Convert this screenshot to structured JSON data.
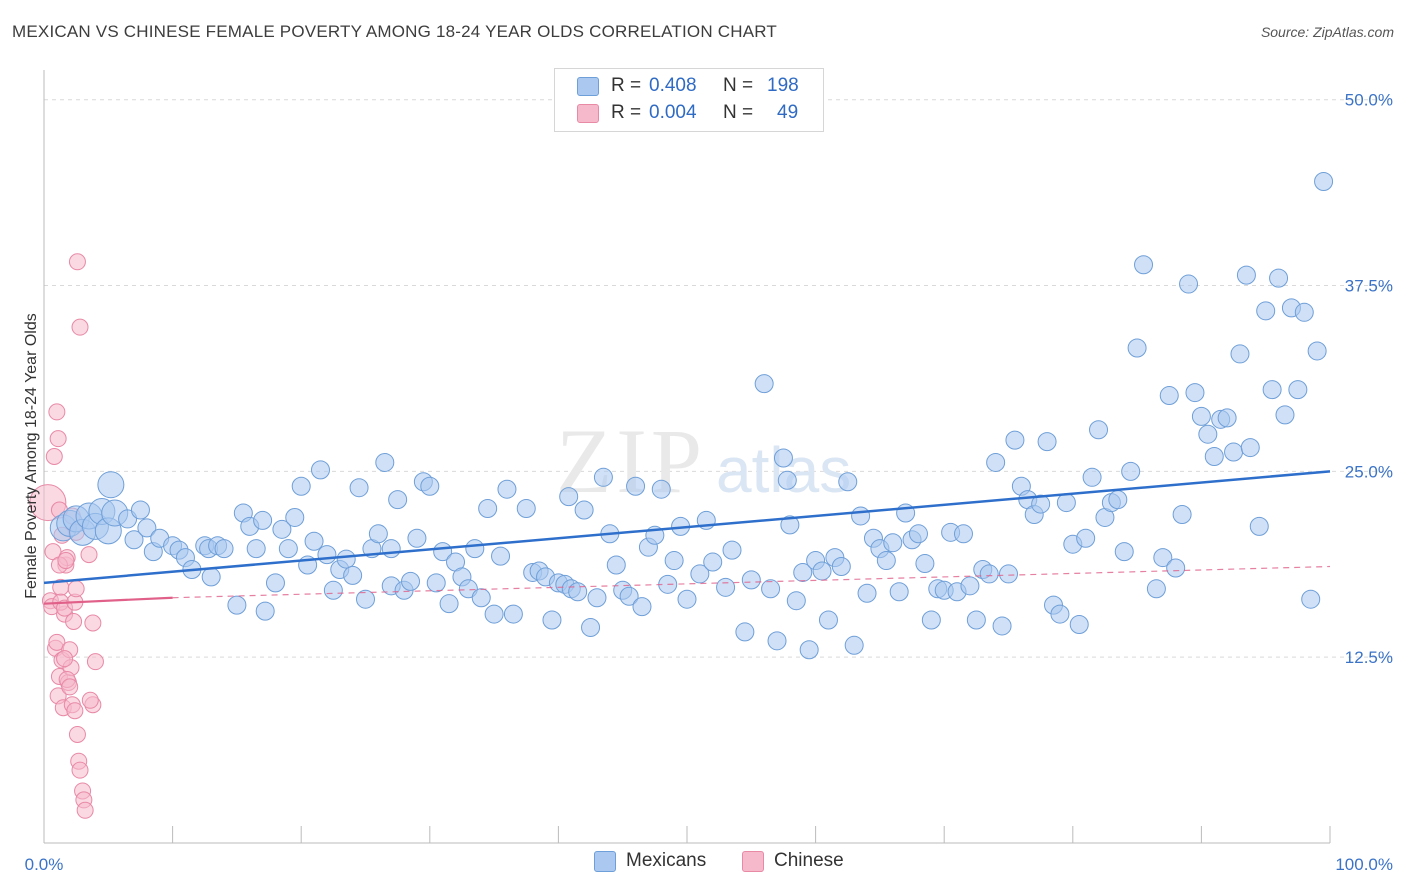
{
  "header": {
    "title": "MEXICAN VS CHINESE FEMALE POVERTY AMONG 18-24 YEAR OLDS CORRELATION CHART",
    "source_prefix": "Source: ",
    "source_name": "ZipAtlas.com"
  },
  "watermark": {
    "zip": "ZIP",
    "atlas": "atlas"
  },
  "legend": {
    "rows": [
      {
        "r_label": "R =",
        "r_value": "0.408",
        "n_label": "N =",
        "n_value": "198"
      },
      {
        "r_label": "R =",
        "r_value": "0.004",
        "n_label": "N =",
        "n_value": "49"
      }
    ]
  },
  "colors": {
    "mexicans_fill": "#aac8f0",
    "mexicans_stroke": "#6f9fd8",
    "mexicans_line": "#2f6fcc",
    "chinese_fill": "#f6b9cc",
    "chinese_stroke": "#e889a6",
    "chinese_line": "#e0608a",
    "axis_text": "#3b73c7",
    "grid": "#d9d9d9"
  },
  "chart_data": {
    "type": "scatter",
    "title": "MEXICAN VS CHINESE FEMALE POVERTY AMONG 18-24 YEAR OLDS CORRELATION CHART",
    "xlabel": "",
    "ylabel": "Female Poverty Among 18-24 Year Olds",
    "xlim": [
      0,
      100
    ],
    "ylim": [
      0,
      52
    ],
    "x_tick_labels": [
      "0.0%",
      "100.0%"
    ],
    "y_ticks": [
      12.5,
      25.0,
      37.5,
      50.0
    ],
    "y_tick_labels": [
      "12.5%",
      "25.0%",
      "37.5%",
      "50.0%"
    ],
    "grid": true,
    "legend_position": "top-center",
    "series": [
      {
        "name": "Mexicans",
        "R": 0.408,
        "N": 198,
        "trend": {
          "x": [
            0,
            100
          ],
          "y": [
            17.5,
            25.0
          ],
          "style": "solid"
        },
        "points": [
          [
            1.5,
            21.2
          ],
          [
            2.0,
            21.5
          ],
          [
            2.5,
            21.8
          ],
          [
            3.0,
            20.9
          ],
          [
            3.5,
            22.0
          ],
          [
            4.0,
            21.3
          ],
          [
            4.5,
            22.3
          ],
          [
            5.0,
            21.0
          ],
          [
            5.5,
            22.2
          ],
          [
            5.2,
            24.1
          ],
          [
            6.5,
            21.8
          ],
          [
            7.0,
            20.4
          ],
          [
            7.5,
            22.4
          ],
          [
            8.0,
            21.2
          ],
          [
            8.5,
            19.6
          ],
          [
            9.0,
            20.5
          ],
          [
            10.0,
            20.0
          ],
          [
            10.5,
            19.7
          ],
          [
            11.0,
            19.2
          ],
          [
            11.5,
            18.4
          ],
          [
            12.5,
            20.0
          ],
          [
            12.8,
            19.8
          ],
          [
            13.0,
            17.9
          ],
          [
            13.5,
            20.0
          ],
          [
            14.0,
            19.8
          ],
          [
            15.0,
            16.0
          ],
          [
            15.5,
            22.2
          ],
          [
            16.0,
            21.3
          ],
          [
            16.5,
            19.8
          ],
          [
            17.0,
            21.7
          ],
          [
            17.2,
            15.6
          ],
          [
            18.0,
            17.5
          ],
          [
            18.5,
            21.1
          ],
          [
            19.0,
            19.8
          ],
          [
            19.5,
            21.9
          ],
          [
            20.0,
            24.0
          ],
          [
            20.5,
            18.7
          ],
          [
            21.0,
            20.3
          ],
          [
            21.5,
            25.1
          ],
          [
            22.0,
            19.4
          ],
          [
            22.5,
            17.0
          ],
          [
            23.0,
            18.4
          ],
          [
            23.5,
            19.1
          ],
          [
            24.0,
            18.0
          ],
          [
            24.5,
            23.9
          ],
          [
            25.0,
            16.4
          ],
          [
            25.5,
            19.8
          ],
          [
            26.0,
            20.8
          ],
          [
            27.0,
            19.8
          ],
          [
            27.5,
            23.1
          ],
          [
            27.0,
            17.3
          ],
          [
            28.0,
            17.0
          ],
          [
            28.5,
            17.6
          ],
          [
            29.0,
            20.5
          ],
          [
            29.5,
            24.3
          ],
          [
            30.0,
            24.0
          ],
          [
            30.5,
            17.5
          ],
          [
            31.0,
            19.6
          ],
          [
            31.5,
            16.1
          ],
          [
            32.0,
            18.9
          ],
          [
            32.5,
            17.9
          ],
          [
            33.0,
            17.1
          ],
          [
            33.5,
            19.8
          ],
          [
            34.0,
            16.5
          ],
          [
            34.5,
            22.5
          ],
          [
            35.0,
            15.4
          ],
          [
            35.5,
            19.3
          ],
          [
            36.0,
            23.8
          ],
          [
            36.5,
            15.4
          ],
          [
            37.5,
            22.5
          ],
          [
            38.0,
            18.2
          ],
          [
            38.5,
            18.3
          ],
          [
            39.0,
            17.9
          ],
          [
            39.5,
            15.0
          ],
          [
            40.0,
            17.5
          ],
          [
            40.5,
            17.4
          ],
          [
            40.8,
            23.3
          ],
          [
            41.0,
            17.1
          ],
          [
            41.5,
            16.9
          ],
          [
            42.0,
            22.4
          ],
          [
            42.5,
            14.5
          ],
          [
            43.0,
            16.5
          ],
          [
            43.5,
            24.6
          ],
          [
            44.0,
            20.8
          ],
          [
            44.5,
            18.7
          ],
          [
            45.0,
            17.0
          ],
          [
            45.5,
            16.6
          ],
          [
            46.0,
            24.0
          ],
          [
            46.5,
            15.9
          ],
          [
            47.0,
            19.9
          ],
          [
            47.5,
            20.7
          ],
          [
            48.0,
            23.8
          ],
          [
            48.5,
            17.4
          ],
          [
            49.0,
            19.0
          ],
          [
            49.5,
            21.3
          ],
          [
            50.0,
            16.4
          ],
          [
            51.0,
            18.1
          ],
          [
            51.5,
            21.7
          ],
          [
            52.0,
            18.9
          ],
          [
            53.0,
            17.2
          ],
          [
            53.5,
            19.7
          ],
          [
            54.5,
            14.2
          ],
          [
            55.0,
            17.7
          ],
          [
            56.0,
            30.9
          ],
          [
            56.5,
            17.1
          ],
          [
            57.0,
            13.6
          ],
          [
            57.5,
            25.9
          ],
          [
            57.8,
            24.4
          ],
          [
            58.0,
            21.4
          ],
          [
            58.5,
            16.3
          ],
          [
            59.0,
            18.2
          ],
          [
            59.5,
            13.0
          ],
          [
            60.0,
            19.0
          ],
          [
            60.5,
            18.3
          ],
          [
            61.0,
            15.0
          ],
          [
            61.5,
            19.2
          ],
          [
            62.0,
            18.6
          ],
          [
            62.5,
            24.3
          ],
          [
            63.0,
            13.3
          ],
          [
            63.5,
            22.0
          ],
          [
            64.0,
            16.8
          ],
          [
            64.5,
            20.5
          ],
          [
            65.0,
            19.8
          ],
          [
            65.5,
            19.0
          ],
          [
            66.0,
            20.2
          ],
          [
            66.5,
            16.9
          ],
          [
            67.0,
            22.2
          ],
          [
            67.5,
            20.4
          ],
          [
            68.0,
            20.8
          ],
          [
            68.5,
            18.8
          ],
          [
            69.0,
            15.0
          ],
          [
            69.5,
            17.1
          ],
          [
            70.0,
            17.0
          ],
          [
            70.5,
            20.9
          ],
          [
            71.0,
            16.9
          ],
          [
            71.5,
            20.8
          ],
          [
            72.0,
            17.3
          ],
          [
            72.5,
            15.0
          ],
          [
            73.0,
            18.4
          ],
          [
            73.5,
            18.1
          ],
          [
            74.0,
            25.6
          ],
          [
            74.5,
            14.6
          ],
          [
            75.0,
            18.1
          ],
          [
            75.5,
            27.1
          ],
          [
            76.0,
            24.0
          ],
          [
            76.5,
            23.1
          ],
          [
            77.0,
            22.1
          ],
          [
            77.5,
            22.8
          ],
          [
            78.0,
            27.0
          ],
          [
            78.5,
            16.0
          ],
          [
            79.0,
            15.4
          ],
          [
            79.5,
            22.9
          ],
          [
            80.0,
            20.1
          ],
          [
            80.5,
            14.7
          ],
          [
            81.0,
            20.5
          ],
          [
            81.5,
            24.6
          ],
          [
            82.0,
            27.8
          ],
          [
            82.5,
            21.9
          ],
          [
            83.0,
            22.9
          ],
          [
            83.5,
            23.1
          ],
          [
            84.0,
            19.6
          ],
          [
            84.5,
            25.0
          ],
          [
            85.0,
            33.3
          ],
          [
            85.5,
            38.9
          ],
          [
            86.5,
            17.1
          ],
          [
            87.0,
            19.2
          ],
          [
            87.5,
            30.1
          ],
          [
            88.0,
            18.5
          ],
          [
            88.5,
            22.1
          ],
          [
            89.0,
            37.6
          ],
          [
            89.5,
            30.3
          ],
          [
            90.0,
            28.7
          ],
          [
            90.5,
            27.5
          ],
          [
            91.0,
            26.0
          ],
          [
            91.5,
            28.5
          ],
          [
            92.0,
            28.6
          ],
          [
            92.5,
            26.3
          ],
          [
            93.0,
            32.9
          ],
          [
            93.5,
            38.2
          ],
          [
            93.8,
            26.6
          ],
          [
            94.5,
            21.3
          ],
          [
            95.0,
            35.8
          ],
          [
            95.5,
            30.5
          ],
          [
            96.0,
            38.0
          ],
          [
            96.5,
            28.8
          ],
          [
            97.0,
            36.0
          ],
          [
            97.5,
            30.5
          ],
          [
            98.0,
            35.7
          ],
          [
            98.5,
            16.4
          ],
          [
            99.0,
            33.1
          ],
          [
            99.5,
            44.5
          ],
          [
            26.5,
            25.6
          ]
        ]
      },
      {
        "name": "Chinese",
        "R": 0.004,
        "N": 49,
        "trend": {
          "x": [
            0,
            10
          ],
          "y": [
            16.1,
            16.5
          ],
          "style": "solid",
          "extended": {
            "x": [
              10,
              100
            ],
            "y": [
              16.5,
              18.6
            ],
            "style": "dashed"
          }
        },
        "points": [
          [
            0.3,
            22.9
          ],
          [
            0.5,
            16.3
          ],
          [
            0.6,
            15.9
          ],
          [
            0.7,
            19.6
          ],
          [
            0.8,
            26.0
          ],
          [
            0.9,
            13.1
          ],
          [
            1.0,
            13.5
          ],
          [
            1.1,
            9.9
          ],
          [
            1.2,
            11.2
          ],
          [
            1.3,
            17.2
          ],
          [
            1.4,
            12.3
          ],
          [
            1.5,
            9.1
          ],
          [
            1.6,
            15.4
          ],
          [
            1.7,
            18.7
          ],
          [
            1.8,
            19.2
          ],
          [
            1.9,
            10.8
          ],
          [
            2.0,
            13.0
          ],
          [
            2.1,
            11.8
          ],
          [
            2.2,
            22.0
          ],
          [
            2.3,
            14.9
          ],
          [
            1.0,
            29.0
          ],
          [
            1.1,
            27.2
          ],
          [
            1.2,
            18.7
          ],
          [
            1.3,
            16.2
          ],
          [
            2.5,
            20.9
          ],
          [
            1.2,
            22.4
          ],
          [
            1.4,
            20.7
          ],
          [
            2.6,
            39.1
          ],
          [
            2.8,
            34.7
          ],
          [
            1.6,
            12.4
          ],
          [
            1.8,
            11.0
          ],
          [
            2.0,
            10.5
          ],
          [
            2.2,
            9.3
          ],
          [
            2.4,
            8.9
          ],
          [
            2.6,
            7.3
          ],
          [
            2.7,
            5.5
          ],
          [
            2.8,
            4.9
          ],
          [
            3.0,
            3.5
          ],
          [
            3.1,
            2.9
          ],
          [
            3.2,
            2.2
          ],
          [
            3.5,
            19.4
          ],
          [
            3.8,
            14.8
          ],
          [
            4.0,
            12.2
          ],
          [
            3.8,
            9.3
          ],
          [
            3.6,
            9.6
          ],
          [
            1.6,
            15.8
          ],
          [
            2.4,
            16.2
          ],
          [
            2.5,
            17.1
          ],
          [
            1.7,
            19.0
          ]
        ]
      }
    ]
  },
  "bottom_legend": {
    "items": [
      {
        "label": "Mexicans"
      },
      {
        "label": "Chinese"
      }
    ]
  }
}
